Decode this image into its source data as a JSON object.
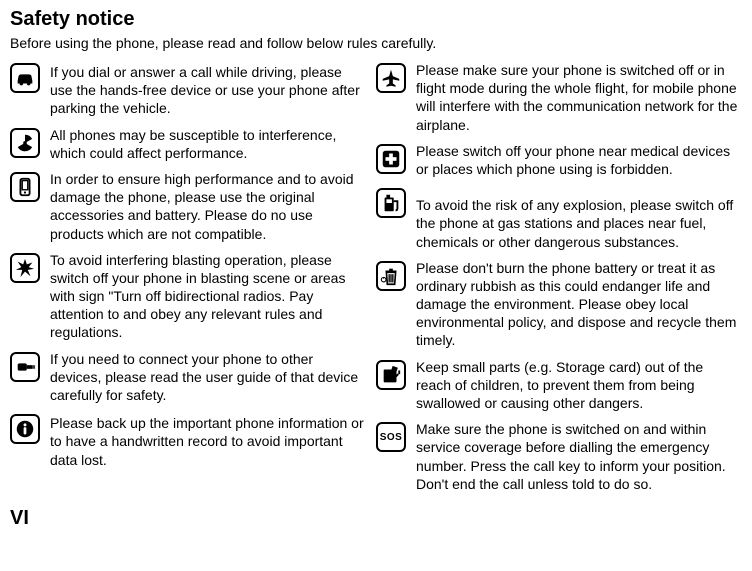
{
  "title": "Safety notice",
  "intro": "Before using the phone, please read and follow below rules carefully.",
  "left": [
    {
      "icon": "car",
      "text": "If you dial or answer a call while driving, please use the hands-free device or use your phone after parking the vehicle.",
      "pad": "xs"
    },
    {
      "icon": "radiation",
      "text": "All phones may be susceptible to interference, which could affect performance."
    },
    {
      "icon": "phone",
      "text": "In order to ensure high performance and to avoid damage the phone, please use the original accessories and battery. Please do no use products which are not compatible."
    },
    {
      "icon": "explosion",
      "text": "To avoid interfering blasting operation, please switch off your phone in blasting scene or areas with sign \"Turn off bidirectional radios. Pay attention to and obey any relevant rules and regulations."
    },
    {
      "icon": "connector",
      "text": "If you need to connect your phone to other devices, please read the user guide of that device carefully for safety."
    },
    {
      "icon": "info",
      "text": "Please back up the important phone information or to have a handwritten record to avoid important data lost.",
      "pad": "xs"
    }
  ],
  "right": [
    {
      "icon": "airplane",
      "text": "Please make sure your phone is switched off or in flight mode during the whole flight, for mobile phone will interfere with the communication network for the airplane."
    },
    {
      "icon": "medical",
      "text": "Please switch off your phone near medical devices or places which phone using is forbidden."
    },
    {
      "icon": "fuel",
      "text": "To avoid the risk of any explosion, please switch off the phone at gas stations and places near fuel, chemicals or other dangerous substances.",
      "pad": "sm"
    },
    {
      "icon": "trash",
      "text": "Please don't burn the phone battery or treat it as ordinary rubbish as this could endanger life and damage the environment. Please obey local environmental policy, and dispose and recycle them timely."
    },
    {
      "icon": "card",
      "text": "Keep small parts (e.g. Storage card) out of the reach of children, to prevent them from being swallowed or causing other dangers."
    },
    {
      "icon": "sos",
      "text": "Make sure the phone is switched on and within service coverage before dialling the emergency number. Press the call key to inform your position. Don't end the call unless told to do so."
    }
  ],
  "footer": "VI"
}
